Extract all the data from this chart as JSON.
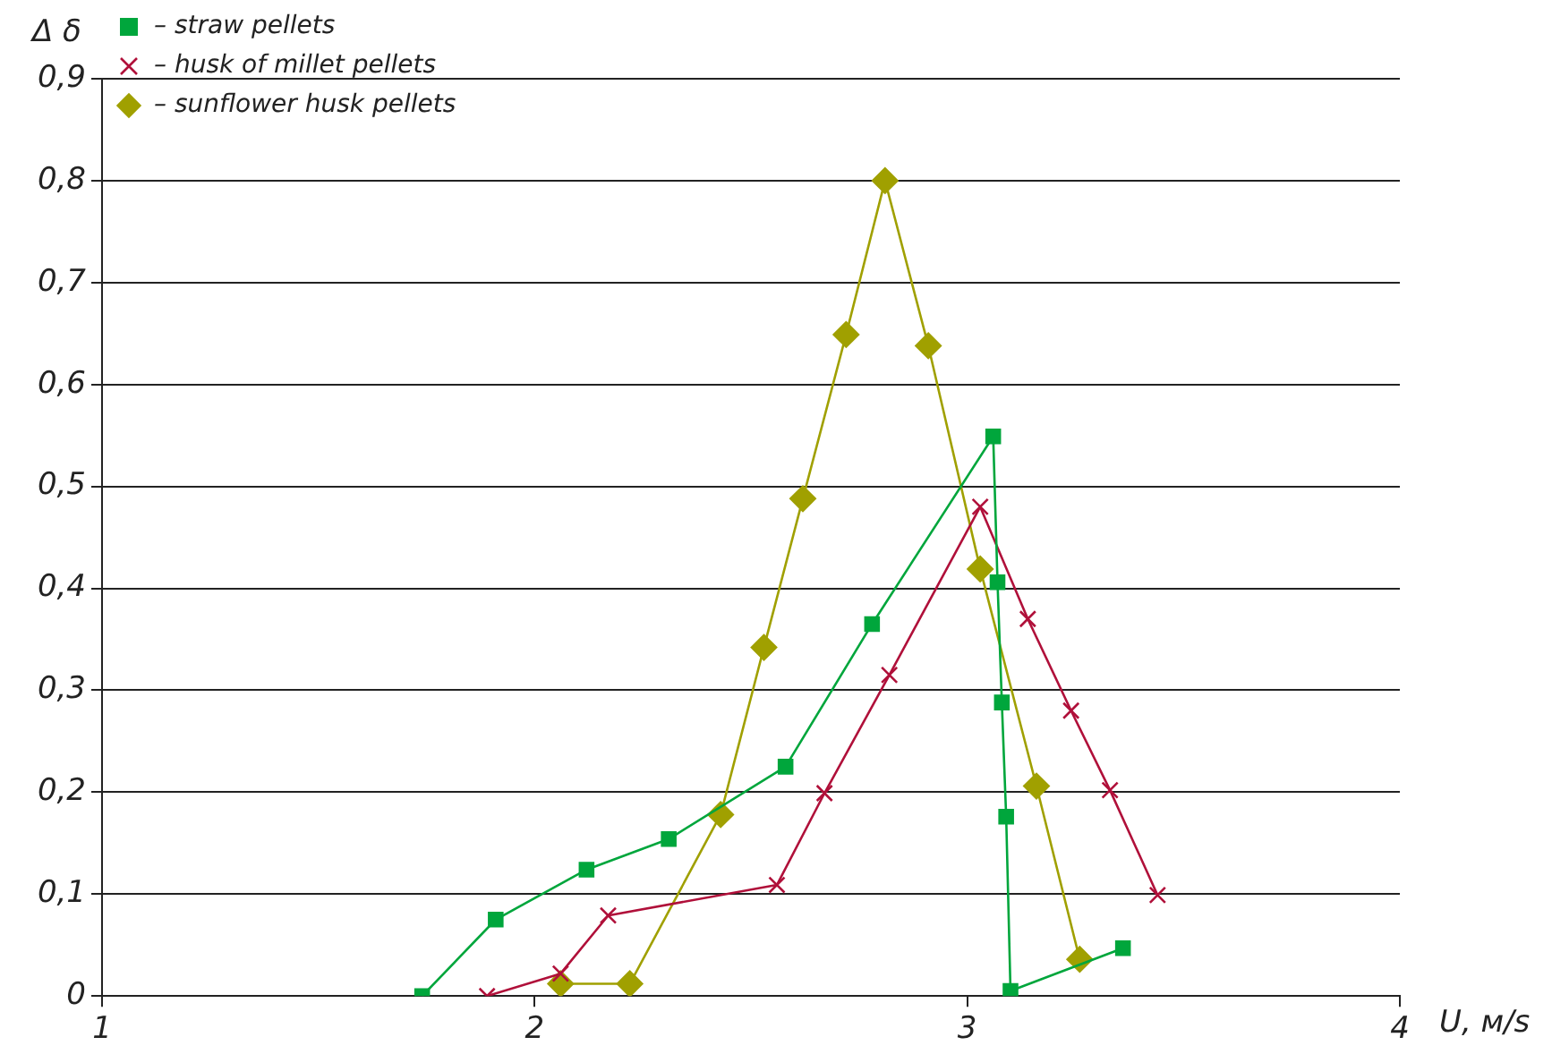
{
  "chart_data": {
    "type": "line",
    "xlabel": "U, м/s",
    "ylabel": "Δ δ",
    "xlim": [
      1,
      4
    ],
    "xticks": [
      1,
      2,
      3,
      4
    ],
    "ylim": [
      0,
      0.9
    ],
    "yticks": [
      0,
      {
        "value": 0.1,
        "label": "0,1"
      },
      {
        "value": 0.2,
        "label": "0,2"
      },
      {
        "value": 0.3,
        "label": "0,3"
      },
      {
        "value": 0.4,
        "label": "0,4"
      },
      {
        "value": 0.5,
        "label": "0,5"
      },
      {
        "value": 0.6,
        "label": "0,6"
      },
      {
        "value": 0.7,
        "label": "0,7"
      },
      {
        "value": 0.8,
        "label": "0,8"
      },
      {
        "value": 0.9,
        "label": "0,9"
      }
    ],
    "grid": "y",
    "legend": "top left",
    "line_style": "solid",
    "series": [
      {
        "name": "– straw pellets",
        "color": "#00a63c",
        "marker": "square",
        "x": [
          1.74,
          1.91,
          2.12,
          2.31,
          2.58,
          2.78,
          3.06,
          3.07,
          3.08,
          3.09,
          3.1,
          3.36
        ],
        "values": [
          0,
          0.075,
          0.124,
          0.154,
          0.225,
          0.365,
          0.549,
          0.406,
          0.288,
          0.176,
          0.005,
          0.047
        ]
      },
      {
        "name": "– husk of millet pellets",
        "color": "#b0103a",
        "marker": "cross",
        "x": [
          1.89,
          2.06,
          2.17,
          2.56,
          2.67,
          2.82,
          3.03,
          3.14,
          3.24,
          3.33,
          3.44
        ],
        "values": [
          0,
          0.022,
          0.079,
          0.109,
          0.199,
          0.315,
          0.48,
          0.37,
          0.28,
          0.202,
          0.099
        ]
      },
      {
        "name": "– sunflower husk pellets",
        "color": "#a0a000",
        "marker": "diamond",
        "x": [
          2.06,
          2.22,
          2.43,
          2.53,
          2.62,
          2.72,
          2.81,
          2.91,
          3.03,
          3.16,
          3.26
        ],
        "values": [
          0.012,
          0.012,
          0.178,
          0.342,
          0.488,
          0.649,
          0.8,
          0.638,
          0.419,
          0.206,
          0.036
        ]
      }
    ]
  }
}
